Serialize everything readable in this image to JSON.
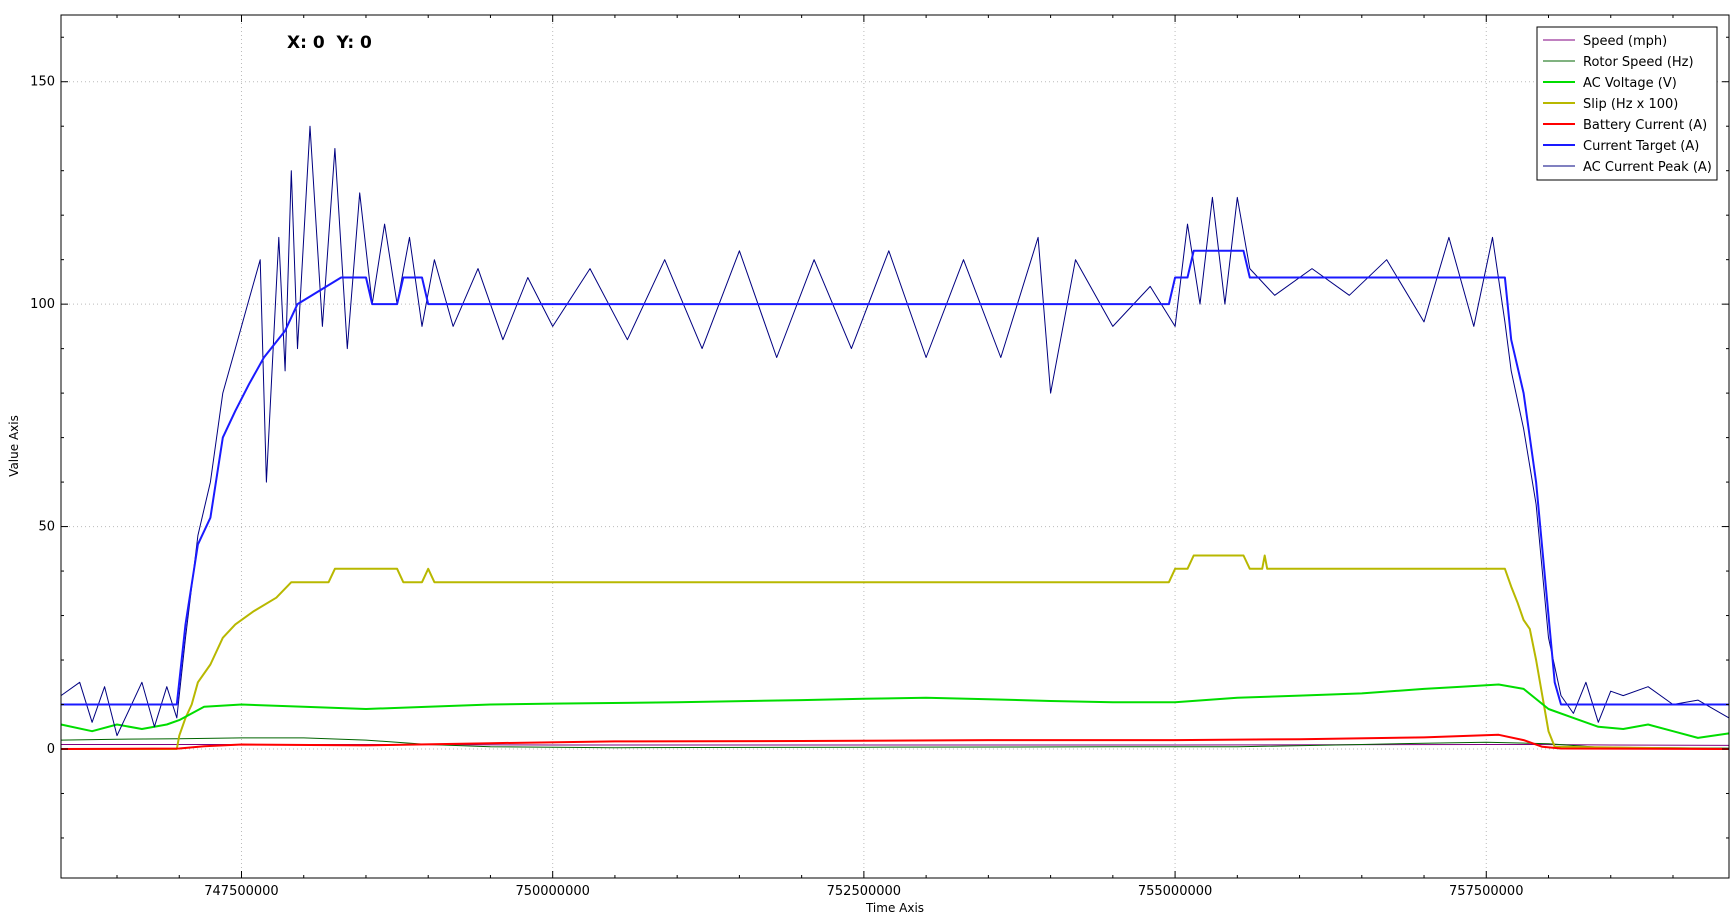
{
  "chart_data": {
    "type": "line",
    "title": "",
    "xlabel": "Time Axis",
    "ylabel": "Value Axis",
    "xlim": [
      746050000,
      759450000
    ],
    "ylim": [
      -29,
      165
    ],
    "xticks": [
      747500000,
      750000000,
      752500000,
      755000000,
      757500000
    ],
    "xtick_labels": [
      "747500000",
      "750000000",
      "752500000",
      "755000000",
      "757500000"
    ],
    "yticks": [
      0,
      50,
      100,
      150
    ],
    "ytick_labels": [
      "0",
      "50",
      "100",
      "150"
    ],
    "grid": true,
    "legend_position": "top-right",
    "coordinate_readout": "X: 0  Y: 0",
    "series": [
      {
        "name": "Speed (mph)",
        "color": "#800080",
        "width": 1,
        "points": [
          [
            746050000,
            1.0
          ],
          [
            747000000,
            1.0
          ],
          [
            747500000,
            1.0
          ],
          [
            748500000,
            1.0
          ],
          [
            750000000,
            0.9
          ],
          [
            752500000,
            0.9
          ],
          [
            755000000,
            0.9
          ],
          [
            757500000,
            1.0
          ],
          [
            757900000,
            1.0
          ],
          [
            758500000,
            0.9
          ],
          [
            759450000,
            0.8
          ]
        ]
      },
      {
        "name": "Rotor Speed (Hz)",
        "color": "#006400",
        "width": 1,
        "points": [
          [
            746050000,
            2.0
          ],
          [
            746500000,
            2.2
          ],
          [
            747000000,
            2.3
          ],
          [
            747500000,
            2.5
          ],
          [
            748000000,
            2.5
          ],
          [
            748500000,
            2.0
          ],
          [
            749000000,
            1.0
          ],
          [
            749500000,
            0.5
          ],
          [
            750500000,
            0.3
          ],
          [
            752500000,
            0.4
          ],
          [
            754500000,
            0.5
          ],
          [
            755500000,
            0.5
          ],
          [
            756500000,
            1.0
          ],
          [
            757000000,
            1.3
          ],
          [
            757500000,
            1.5
          ],
          [
            758000000,
            1.2
          ],
          [
            758400000,
            0.4
          ],
          [
            759450000,
            0.2
          ]
        ]
      },
      {
        "name": "AC Voltage (V)",
        "color": "#00dd00",
        "width": 2,
        "points": [
          [
            746050000,
            5.5
          ],
          [
            746300000,
            4.0
          ],
          [
            746500000,
            5.5
          ],
          [
            746700000,
            4.5
          ],
          [
            746900000,
            5.5
          ],
          [
            747000000,
            6.5
          ],
          [
            747200000,
            9.5
          ],
          [
            747500000,
            10.0
          ],
          [
            748000000,
            9.5
          ],
          [
            748500000,
            9.0
          ],
          [
            749000000,
            9.5
          ],
          [
            749500000,
            10.0
          ],
          [
            750000000,
            10.2
          ],
          [
            751000000,
            10.5
          ],
          [
            752000000,
            11.0
          ],
          [
            752500000,
            11.3
          ],
          [
            753000000,
            11.5
          ],
          [
            753500000,
            11.2
          ],
          [
            754000000,
            10.8
          ],
          [
            754500000,
            10.5
          ],
          [
            755000000,
            10.5
          ],
          [
            755500000,
            11.5
          ],
          [
            756000000,
            12.0
          ],
          [
            756500000,
            12.5
          ],
          [
            757000000,
            13.5
          ],
          [
            757300000,
            14.0
          ],
          [
            757600000,
            14.5
          ],
          [
            757800000,
            13.5
          ],
          [
            758000000,
            9.0
          ],
          [
            758200000,
            7.0
          ],
          [
            758400000,
            5.0
          ],
          [
            758600000,
            4.5
          ],
          [
            758800000,
            5.5
          ],
          [
            759000000,
            4.0
          ],
          [
            759200000,
            2.5
          ],
          [
            759450000,
            3.5
          ]
        ]
      },
      {
        "name": "Slip (Hz x 100)",
        "color": "#b8b800",
        "width": 2,
        "points": [
          [
            746050000,
            0
          ],
          [
            746980000,
            0
          ],
          [
            747000000,
            3
          ],
          [
            747050000,
            7
          ],
          [
            747100000,
            10
          ],
          [
            747150000,
            15
          ],
          [
            747250000,
            19
          ],
          [
            747350000,
            25
          ],
          [
            747450000,
            28
          ],
          [
            747600000,
            31
          ],
          [
            747780000,
            34
          ],
          [
            747900000,
            37.5
          ],
          [
            748200000,
            37.5
          ],
          [
            748250000,
            40.5
          ],
          [
            748750000,
            40.5
          ],
          [
            748800000,
            37.5
          ],
          [
            748950000,
            37.5
          ],
          [
            749000000,
            40.5
          ],
          [
            749050000,
            37.5
          ],
          [
            754950000,
            37.5
          ],
          [
            755000000,
            40.5
          ],
          [
            755100000,
            40.5
          ],
          [
            755150000,
            43.5
          ],
          [
            755550000,
            43.5
          ],
          [
            755600000,
            40.5
          ],
          [
            755700000,
            40.5
          ],
          [
            755720000,
            43.5
          ],
          [
            755740000,
            40.5
          ],
          [
            757650000,
            40.5
          ],
          [
            757700000,
            36.5
          ],
          [
            757750000,
            33
          ],
          [
            757800000,
            29
          ],
          [
            757850000,
            27
          ],
          [
            757900000,
            20
          ],
          [
            757950000,
            12
          ],
          [
            758000000,
            4
          ],
          [
            758050000,
            0.5
          ],
          [
            759450000,
            0
          ]
        ]
      },
      {
        "name": "Battery Current (A)",
        "color": "#ff0000",
        "width": 2,
        "points": [
          [
            746050000,
            0
          ],
          [
            747000000,
            0.1
          ],
          [
            747200000,
            0.6
          ],
          [
            747500000,
            1.0
          ],
          [
            748500000,
            0.8
          ],
          [
            749500000,
            1.3
          ],
          [
            750500000,
            1.7
          ],
          [
            752000000,
            1.8
          ],
          [
            753500000,
            2.0
          ],
          [
            755000000,
            2.0
          ],
          [
            756000000,
            2.2
          ],
          [
            757000000,
            2.6
          ],
          [
            757600000,
            3.2
          ],
          [
            757800000,
            2.0
          ],
          [
            757950000,
            0.5
          ],
          [
            758100000,
            0.1
          ],
          [
            759450000,
            0
          ]
        ]
      },
      {
        "name": "Current Target (A)",
        "color": "#1a1aff",
        "width": 2,
        "points": [
          [
            746050000,
            10
          ],
          [
            746980000,
            10
          ],
          [
            747050000,
            28
          ],
          [
            747150000,
            46
          ],
          [
            747250000,
            52
          ],
          [
            747350000,
            70
          ],
          [
            747450000,
            76
          ],
          [
            747560000,
            82
          ],
          [
            747680000,
            88
          ],
          [
            747850000,
            94
          ],
          [
            747950000,
            100
          ],
          [
            748300000,
            106
          ],
          [
            748500000,
            106
          ],
          [
            748550000,
            100
          ],
          [
            748750000,
            100
          ],
          [
            748800000,
            106
          ],
          [
            748950000,
            106
          ],
          [
            749000000,
            100
          ],
          [
            754950000,
            100
          ],
          [
            755000000,
            106
          ],
          [
            755100000,
            106
          ],
          [
            755150000,
            112
          ],
          [
            755550000,
            112
          ],
          [
            755600000,
            106
          ],
          [
            757650000,
            106
          ],
          [
            757700000,
            92
          ],
          [
            757800000,
            80
          ],
          [
            757900000,
            60
          ],
          [
            757950000,
            45
          ],
          [
            758000000,
            30
          ],
          [
            758050000,
            15
          ],
          [
            758100000,
            10
          ],
          [
            759450000,
            10
          ]
        ]
      },
      {
        "name": "AC Current Peak (A)",
        "color": "#000080",
        "width": 1,
        "points": [
          [
            746050000,
            12
          ],
          [
            746200000,
            15
          ],
          [
            746300000,
            6
          ],
          [
            746400000,
            14
          ],
          [
            746500000,
            3
          ],
          [
            746600000,
            9
          ],
          [
            746700000,
            15
          ],
          [
            746800000,
            5
          ],
          [
            746900000,
            14
          ],
          [
            746980000,
            7
          ],
          [
            747050000,
            25
          ],
          [
            747150000,
            48
          ],
          [
            747250000,
            60
          ],
          [
            747350000,
            80
          ],
          [
            747450000,
            90
          ],
          [
            747550000,
            100
          ],
          [
            747650000,
            110
          ],
          [
            747700000,
            60
          ],
          [
            747800000,
            115
          ],
          [
            747850000,
            85
          ],
          [
            747900000,
            130
          ],
          [
            747950000,
            90
          ],
          [
            748050000,
            140
          ],
          [
            748150000,
            95
          ],
          [
            748250000,
            135
          ],
          [
            748350000,
            90
          ],
          [
            748450000,
            125
          ],
          [
            748550000,
            100
          ],
          [
            748650000,
            118
          ],
          [
            748750000,
            100
          ],
          [
            748850000,
            115
          ],
          [
            748950000,
            95
          ],
          [
            749050000,
            110
          ],
          [
            749200000,
            95
          ],
          [
            749400000,
            108
          ],
          [
            749600000,
            92
          ],
          [
            749800000,
            106
          ],
          [
            750000000,
            95
          ],
          [
            750300000,
            108
          ],
          [
            750600000,
            92
          ],
          [
            750900000,
            110
          ],
          [
            751200000,
            90
          ],
          [
            751500000,
            112
          ],
          [
            751800000,
            88
          ],
          [
            752100000,
            110
          ],
          [
            752400000,
            90
          ],
          [
            752700000,
            112
          ],
          [
            753000000,
            88
          ],
          [
            753300000,
            110
          ],
          [
            753600000,
            88
          ],
          [
            753900000,
            115
          ],
          [
            754000000,
            80
          ],
          [
            754200000,
            110
          ],
          [
            754500000,
            95
          ],
          [
            754800000,
            104
          ],
          [
            755000000,
            95
          ],
          [
            755100000,
            118
          ],
          [
            755200000,
            100
          ],
          [
            755300000,
            124
          ],
          [
            755400000,
            100
          ],
          [
            755500000,
            124
          ],
          [
            755600000,
            108
          ],
          [
            755800000,
            102
          ],
          [
            756100000,
            108
          ],
          [
            756400000,
            102
          ],
          [
            756700000,
            110
          ],
          [
            757000000,
            96
          ],
          [
            757200000,
            115
          ],
          [
            757400000,
            95
          ],
          [
            757550000,
            115
          ],
          [
            757650000,
            96
          ],
          [
            757700000,
            85
          ],
          [
            757800000,
            72
          ],
          [
            757900000,
            55
          ],
          [
            758000000,
            25
          ],
          [
            758100000,
            12
          ],
          [
            758200000,
            8
          ],
          [
            758300000,
            15
          ],
          [
            758400000,
            6
          ],
          [
            758500000,
            13
          ],
          [
            758600000,
            12
          ],
          [
            758800000,
            14
          ],
          [
            759000000,
            10
          ],
          [
            759200000,
            11
          ],
          [
            759450000,
            7
          ]
        ]
      }
    ]
  }
}
